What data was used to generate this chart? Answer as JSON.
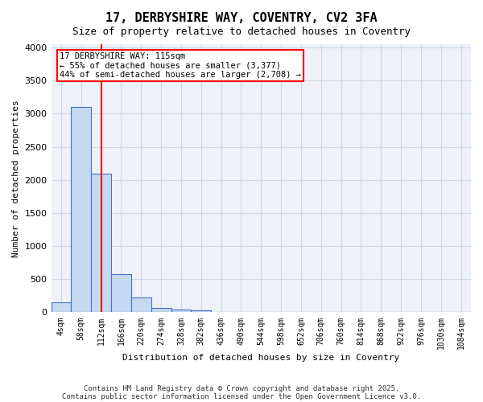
{
  "title1": "17, DERBYSHIRE WAY, COVENTRY, CV2 3FA",
  "title2": "Size of property relative to detached houses in Coventry",
  "xlabel": "Distribution of detached houses by size in Coventry",
  "ylabel": "Number of detached properties",
  "bin_labels": [
    "4sqm",
    "58sqm",
    "112sqm",
    "166sqm",
    "220sqm",
    "274sqm",
    "328sqm",
    "382sqm",
    "436sqm",
    "490sqm",
    "544sqm",
    "598sqm",
    "652sqm",
    "706sqm",
    "760sqm",
    "814sqm",
    "868sqm",
    "922sqm",
    "976sqm",
    "1030sqm",
    "1084sqm"
  ],
  "bar_values": [
    150,
    3100,
    2090,
    575,
    225,
    70,
    40,
    30,
    0,
    0,
    0,
    0,
    0,
    0,
    0,
    0,
    0,
    0,
    0,
    0,
    0
  ],
  "bar_color": "#c6d9f1",
  "bar_edge_color": "#4472c4",
  "grid_color": "#d0d8e8",
  "background_color": "#eef2f8",
  "vline_x": 2,
  "vline_color": "red",
  "annotation_box_text": "17 DERBYSHIRE WAY: 115sqm\n← 55% of detached houses are smaller (3,377)\n44% of semi-detached houses are larger (2,708) →",
  "footnote1": "Contains HM Land Registry data © Crown copyright and database right 2025.",
  "footnote2": "Contains public sector information licensed under the Open Government Licence v3.0.",
  "ylim": [
    0,
    4050
  ],
  "yticks": [
    0,
    500,
    1000,
    1500,
    2000,
    2500,
    3000,
    3500,
    4000
  ]
}
